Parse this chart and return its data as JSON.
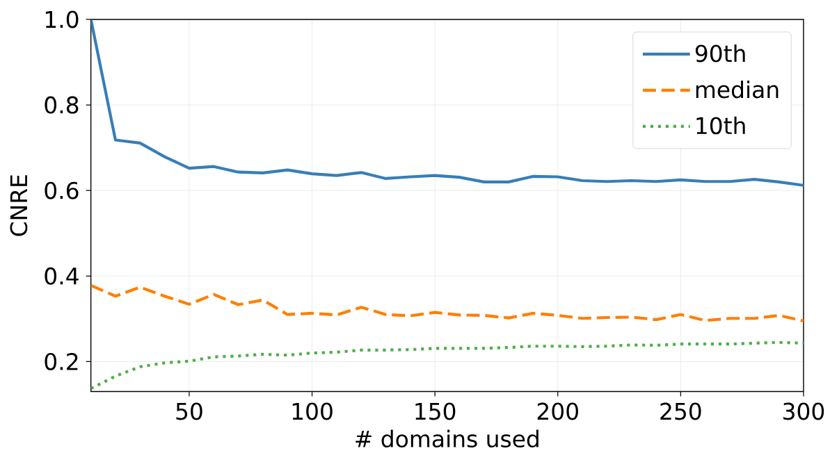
{
  "chart_data": {
    "type": "line",
    "xlabel": "# domains used",
    "ylabel": "CNRE",
    "x": [
      10,
      20,
      30,
      40,
      50,
      60,
      70,
      80,
      90,
      100,
      110,
      120,
      130,
      140,
      150,
      160,
      170,
      180,
      190,
      200,
      210,
      220,
      230,
      240,
      250,
      260,
      270,
      280,
      290,
      300
    ],
    "series": [
      {
        "name": "90th",
        "color": "#377eb8",
        "line_style": "solid",
        "values": [
          1.0,
          0.718,
          0.711,
          0.679,
          0.652,
          0.656,
          0.643,
          0.641,
          0.648,
          0.639,
          0.635,
          0.642,
          0.628,
          0.632,
          0.635,
          0.631,
          0.62,
          0.62,
          0.633,
          0.632,
          0.623,
          0.621,
          0.623,
          0.621,
          0.625,
          0.621,
          0.621,
          0.626,
          0.62,
          0.612
        ]
      },
      {
        "name": "median",
        "color": "#ff7f00",
        "line_style": "dashed",
        "values": [
          0.378,
          0.353,
          0.374,
          0.353,
          0.334,
          0.357,
          0.333,
          0.344,
          0.31,
          0.313,
          0.309,
          0.327,
          0.31,
          0.307,
          0.315,
          0.309,
          0.308,
          0.302,
          0.313,
          0.308,
          0.301,
          0.303,
          0.304,
          0.298,
          0.31,
          0.296,
          0.301,
          0.301,
          0.308,
          0.295
        ]
      },
      {
        "name": "10th",
        "color": "#4daf4a",
        "line_style": "dotted",
        "values": [
          0.137,
          0.166,
          0.188,
          0.197,
          0.201,
          0.211,
          0.213,
          0.217,
          0.215,
          0.22,
          0.222,
          0.227,
          0.227,
          0.228,
          0.231,
          0.231,
          0.231,
          0.233,
          0.236,
          0.236,
          0.235,
          0.236,
          0.239,
          0.238,
          0.241,
          0.241,
          0.241,
          0.243,
          0.245,
          0.243
        ]
      }
    ],
    "xlim": [
      10,
      300
    ],
    "ylim": [
      0.13,
      1.0
    ],
    "xticks": [
      50,
      100,
      150,
      200,
      250,
      300
    ],
    "yticks": [
      0.2,
      0.4,
      0.6,
      0.8,
      {
        "value": 1.0,
        "label": "1.0"
      }
    ],
    "grid": true,
    "legend": "top right"
  }
}
